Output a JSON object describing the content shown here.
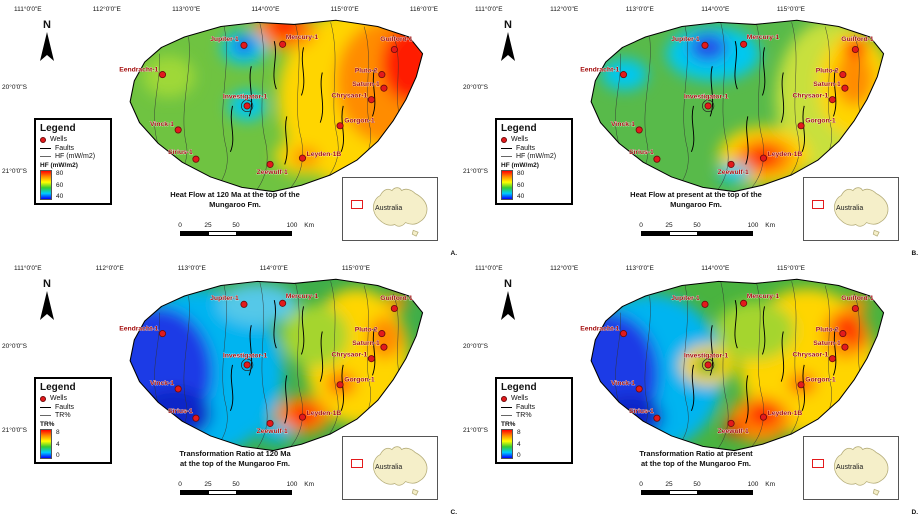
{
  "north_label": "N",
  "inset_label": "Australia",
  "wells": [
    "Jupiter-1",
    "Mercury-1",
    "Guilford-1",
    "Eendracht-1",
    "Pluto-2",
    "Saturn-1",
    "Chrysaor-1",
    "Investigator-1",
    "Gorgon-1",
    "Vinck-1",
    "Sirius-1",
    "Leyden-1B",
    "Zeewulf-1"
  ],
  "legend": {
    "title": "Legend",
    "wells": "Wells",
    "faults": "Faults"
  },
  "scalebar": {
    "t0": "0",
    "t1": "25",
    "t2": "50",
    "t3": "100",
    "unit": "Km"
  },
  "colors": {
    "well_marker": "#e31a1c",
    "ramp": [
      "#ff0000",
      "#ff8c00",
      "#ffff00",
      "#33cc33",
      "#00ccff",
      "#0000ff"
    ],
    "australia_fill": "#f5efc9"
  },
  "panels": [
    {
      "letter": "A.",
      "caption1": "Heat Flow at 120 Ma at the top of the",
      "caption2": "Mungaroo Fm.",
      "layer_label": "HF (mW/m2)",
      "ramp_title": "HF (mW/m2)",
      "ramp_ticks": [
        "80",
        "60",
        "40"
      ],
      "lat": [
        "20°0'0\"S",
        "21°0'0\"S"
      ],
      "lon": [
        "111°0'0\"E",
        "112°0'0\"E",
        "113°0'0\"E",
        "114°0'0\"E",
        "115°0'0\"E",
        "116°0'0\"E"
      ]
    },
    {
      "letter": "B.",
      "caption1": "Heat Flow at present at the top of the",
      "caption2": "Mungaroo Fm.",
      "layer_label": "HF (mW/m2)",
      "ramp_title": "HF (mW/m2)",
      "ramp_ticks": [
        "80",
        "60",
        "40"
      ],
      "lat": [
        "20°0'0\"S",
        "21°0'0\"S"
      ],
      "lon": [
        "111°0'0\"E",
        "112°0'0\"E",
        "113°0'0\"E",
        "114°0'0\"E",
        "115°0'0\"E"
      ]
    },
    {
      "letter": "C.",
      "caption1": "Transformation Ratio at 120 Ma",
      "caption2": "at the top of the Mungaroo Fm.",
      "layer_label": "TR%",
      "ramp_title": "TR%",
      "ramp_ticks": [
        "8",
        "4",
        "0"
      ],
      "lat": [
        "20°0'0\"S",
        "21°0'0\"S"
      ],
      "lon": [
        "111°0'0\"E",
        "112°0'0\"E",
        "113°0'0\"E",
        "114°0'0\"E",
        "115°0'0\"E"
      ]
    },
    {
      "letter": "D.",
      "caption1": "Transformation Ratio at present",
      "caption2": "at the top of the Mungaroo Fm.",
      "layer_label": "TR%",
      "ramp_title": "TR%",
      "ramp_ticks": [
        "8",
        "4",
        "0"
      ],
      "lat": [
        "20°0'0\"S",
        "21°0'0\"S"
      ],
      "lon": [
        "111°0'0\"E",
        "112°0'0\"E",
        "113°0'0\"E",
        "114°0'0\"E",
        "115°0'0\"E"
      ]
    }
  ]
}
